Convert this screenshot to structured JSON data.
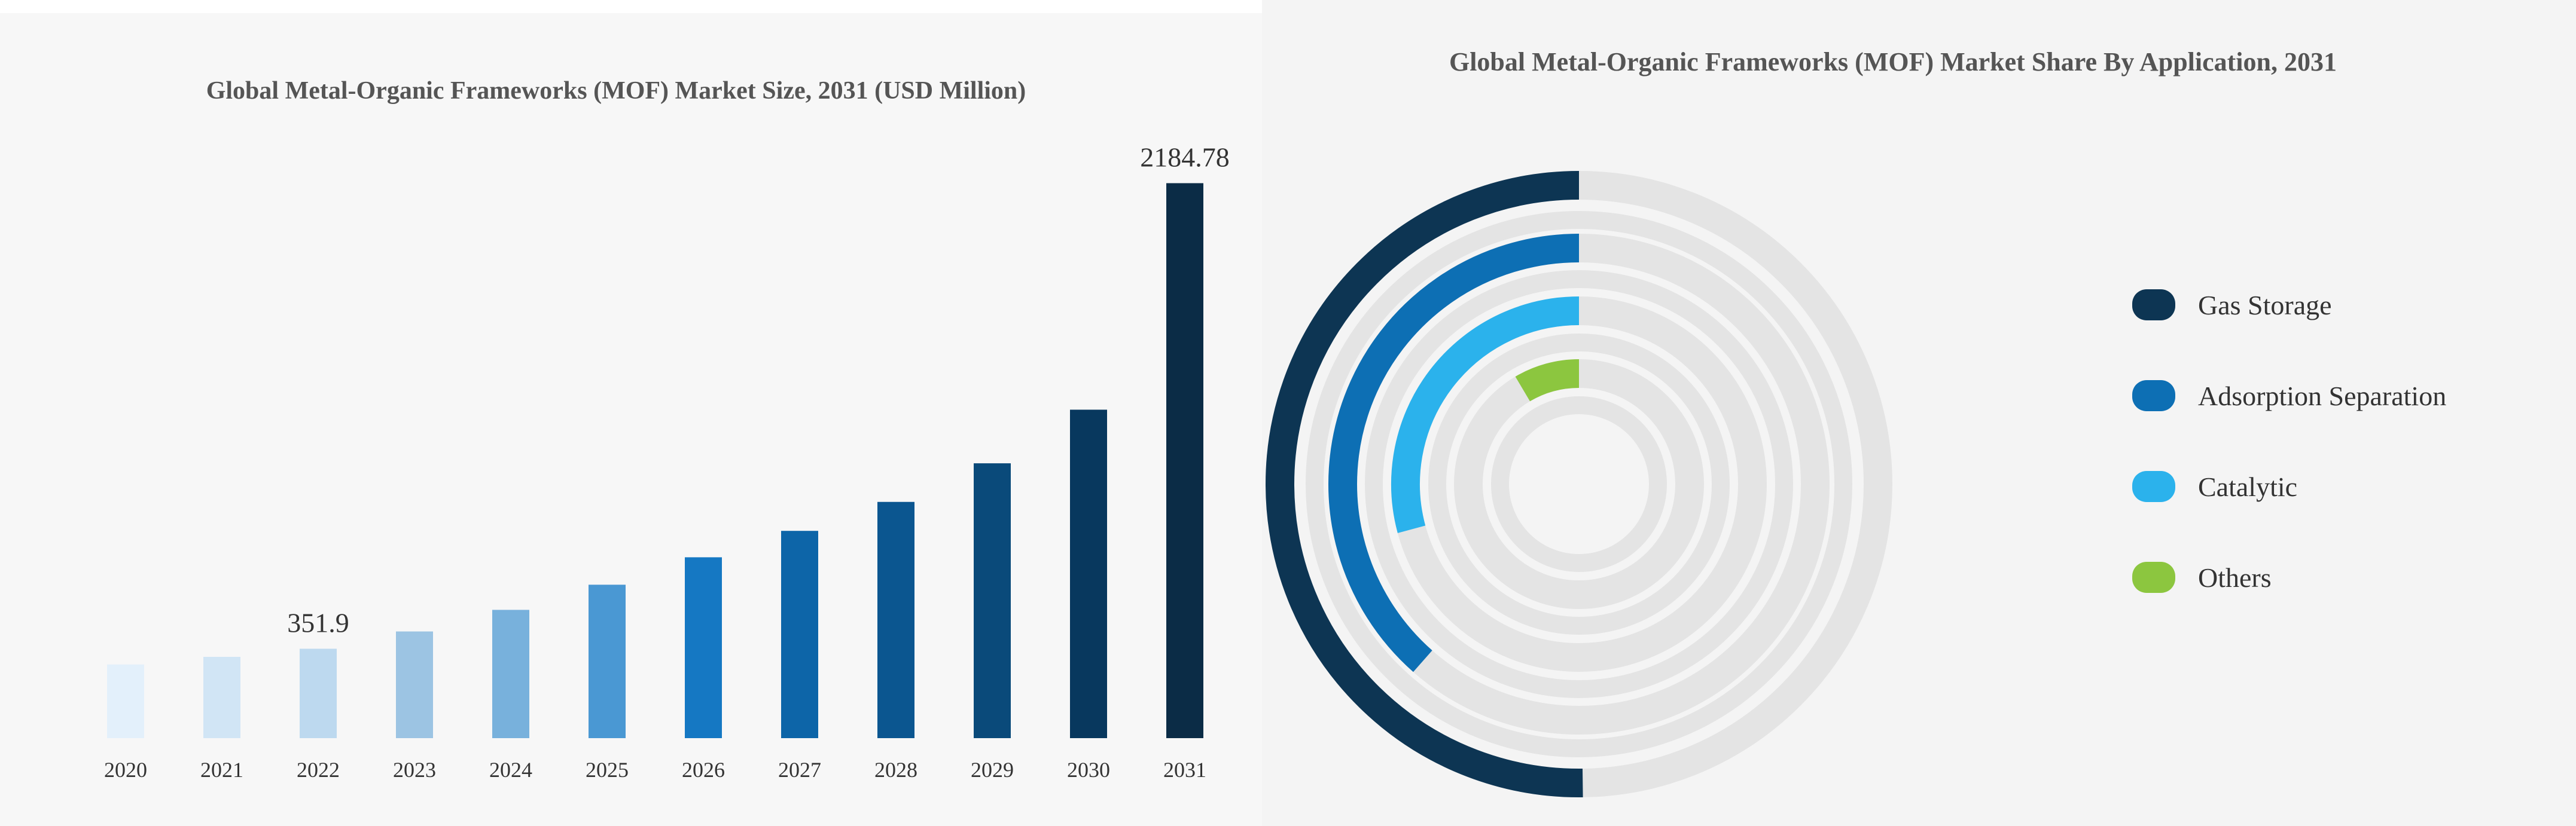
{
  "chart_data": [
    {
      "type": "bar",
      "title": "Global Metal-Organic Frameworks (MOF) Market Size, 2031 (USD Million)",
      "xlabel": "",
      "ylabel": "",
      "categories": [
        "2020",
        "2021",
        "2022",
        "2023",
        "2024",
        "2025",
        "2026",
        "2027",
        "2028",
        "2029",
        "2030",
        "2031"
      ],
      "values": [
        290,
        320,
        351.9,
        420,
        505,
        604,
        712,
        816,
        930,
        1082,
        1293,
        2184.78
      ],
      "data_labels": [
        {
          "category": "2022",
          "text": "351.9"
        },
        {
          "category": "2031",
          "text": "2184.78"
        }
      ],
      "colors": [
        "#e3f0fb",
        "#d1e5f5",
        "#bdd9ef",
        "#9cc4e3",
        "#78b1dc",
        "#4a98d3",
        "#1578c3",
        "#0d65a8",
        "#0b5690",
        "#0a4a7a",
        "#08385e",
        "#0b2c46"
      ],
      "ylim": [
        0,
        2400
      ],
      "grid": false,
      "legend": "none"
    },
    {
      "type": "radial-bar",
      "title": "Global Metal-Organic Frameworks (MOF) Market Share By Application, 2031",
      "series": [
        {
          "name": "Gas Storage",
          "value": 50.2,
          "color": "#0d3553"
        },
        {
          "name": "Adsorption Separation",
          "value": 38.5,
          "color": "#0d6fb4"
        },
        {
          "name": "Catalytic",
          "value": 29.2,
          "color": "#2bb2ec"
        },
        {
          "name": "Others",
          "value": 8.5,
          "color": "#8cc63f"
        }
      ],
      "track_color": "#e4e4e4",
      "legend": "right"
    }
  ]
}
